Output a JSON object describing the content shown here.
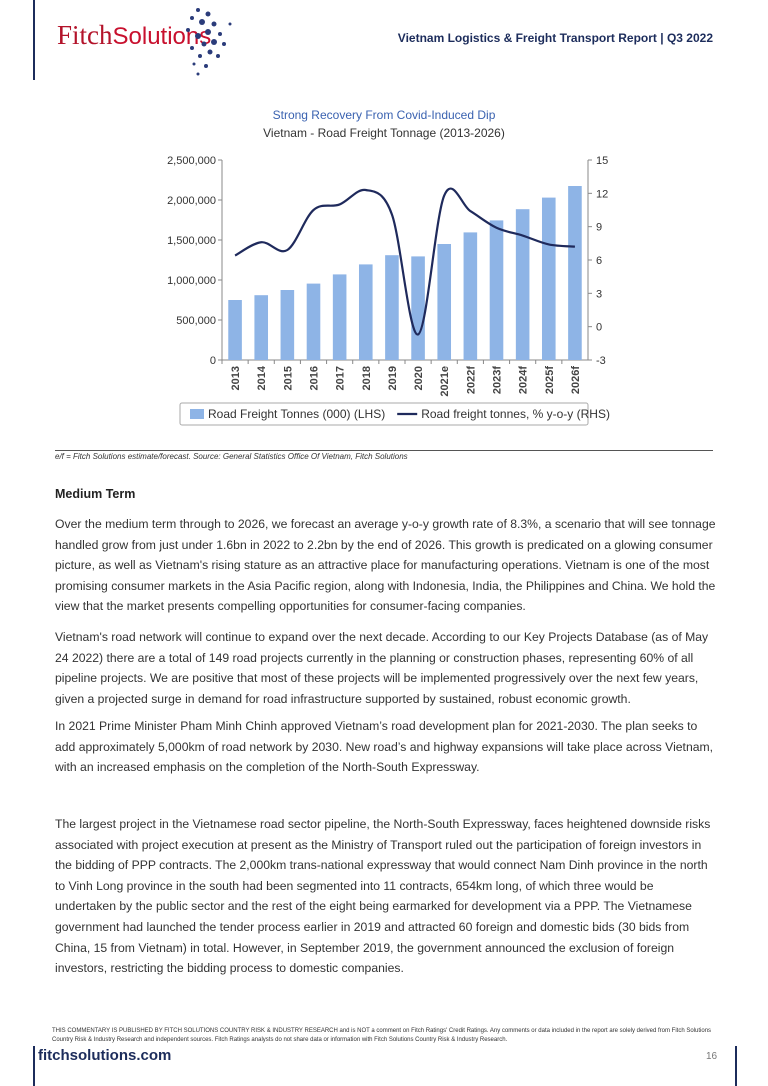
{
  "header": {
    "logo": [
      "Fitch",
      "Solutions"
    ],
    "report_title": "Vietnam Logistics & Freight Transport Report | Q3 2022"
  },
  "chart_data": {
    "type": "combo",
    "title": "Strong Recovery From Covid-Induced Dip",
    "subtitle": "Vietnam - Road Freight Tonnage (2013-2026)",
    "categories": [
      "2013",
      "2014",
      "2015",
      "2016",
      "2017",
      "2018",
      "2019",
      "2020",
      "2021e",
      "2022f",
      "2023f",
      "2024f",
      "2025f",
      "2026f"
    ],
    "series": [
      {
        "name": "Road Freight Tonnes (000) (LHS)",
        "type": "bar",
        "axis": "y",
        "color": "#8eb4e6",
        "values": [
          750000,
          810000,
          875000,
          955000,
          1070000,
          1195000,
          1310000,
          1295000,
          1450000,
          1595000,
          1745000,
          1885000,
          2030000,
          2175000
        ]
      },
      {
        "name": "Road freight tonnes, % y-o-y (RHS)",
        "type": "line",
        "axis": "y2",
        "color": "#1f2a5c",
        "values": [
          6.4,
          7.6,
          6.9,
          10.5,
          11.0,
          12.3,
          10.1,
          -0.7,
          11.8,
          10.4,
          8.9,
          8.2,
          7.4,
          7.2
        ]
      }
    ],
    "ylim": [
      0,
      2500000
    ],
    "yticks": [
      {
        "value": 0,
        "label": "0"
      },
      {
        "value": 500000,
        "label": "500,000"
      },
      {
        "value": 1000000,
        "label": "1,000,000"
      },
      {
        "value": 1500000,
        "label": "1,500,000"
      },
      {
        "value": 2000000,
        "label": "2,000,000"
      },
      {
        "value": 2500000,
        "label": "2,500,000"
      }
    ],
    "y2lim": [
      -3,
      15
    ],
    "y2ticks": [
      -3,
      0,
      3,
      6,
      9,
      12,
      15
    ],
    "grid": false,
    "legend": "bottom",
    "source": "e/f = Fitch Solutions estimate/forecast. Source: General Statistics Office Of Vietnam, Fitch Solutions"
  },
  "section": {
    "heading": "Medium Term",
    "paragraphs": [
      "Over the medium term through to 2026, we forecast an average y-o-y growth rate of 8.3%, a scenario that will see tonnage handled grow from just under 1.6bn in 2022 to 2.2bn by the end of 2026. This growth is predicated on a glowing consumer picture, as well as Vietnam's rising stature as an attractive place for manufacturing operations. Vietnam is one of the most promising consumer markets in the Asia Pacific region, along with Indonesia, India, the Philippines and China. We hold the view that the market presents compelling opportunities for consumer-facing companies.",
      "Vietnam's road network will continue to expand over the next decade. According to our Key Projects Database (as of May 24 2022) there are a total of 149 road projects currently in the planning or construction phases, representing 60% of all pipeline projects. We are positive that most of these projects will be implemented progressively over the next few years, given a projected surge in demand for road infrastructure supported by sustained, robust economic growth.",
      "In 2021 Prime Minister Pham Minh Chinh approved Vietnam’s road development plan for 2021-2030. The plan seeks to add approximately 5,000km of road network by 2030. New road’s and highway expansions will take place across Vietnam, with an increased emphasis on the completion of the North-South Expressway.",
      "The largest project in the Vietnamese road sector pipeline, the North-South Expressway, faces heightened downside risks associated with project execution at present as the Ministry of Transport ruled out the participation of foreign investors in the bidding of PPP contracts. The 2,000km trans-national expressway that would connect Nam Dinh province in the north to Vinh Long province in the south had been segmented into 11 contracts, 654km long, of which three would be undertaken by the public sector and the rest of the eight being earmarked for development via a PPP. The Vietnamese government had launched the tender process earlier in 2019 and attracted 60 foreign and domestic bids (30 bids from China, 15 from Vietnam) in total. However, in September 2019, the government announced the exclusion of foreign investors, restricting the bidding process to domestic companies."
    ]
  },
  "footer": {
    "disclaimer": "THIS COMMENTARY IS PUBLISHED BY FITCH SOLUTIONS COUNTRY RISK & INDUSTRY RESEARCH and is NOT a comment on Fitch Ratings' Credit Ratings. Any comments or data included in the report are solely derived from Fitch Solutions Country Risk & Industry Research and independent sources. Fitch Ratings analysts do not share data or information with Fitch Solutions Country Risk & Industry Research.",
    "website": "fitchsolutions.com",
    "page_number": "16"
  }
}
